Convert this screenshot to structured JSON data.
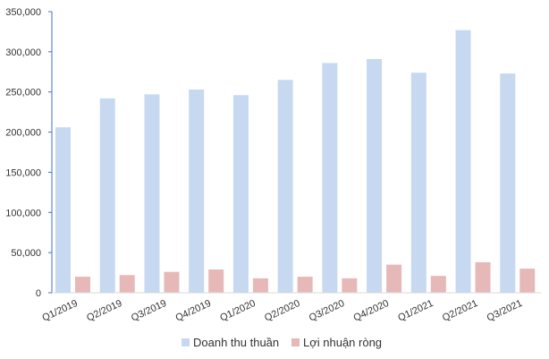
{
  "chart_data": {
    "type": "bar",
    "title": "",
    "xlabel": "",
    "ylabel": "",
    "categories": [
      "Q1/2019",
      "Q2/2019",
      "Q3/2019",
      "Q4/2019",
      "Q1/2020",
      "Q2/2020",
      "Q3/2020",
      "Q4/2020",
      "Q1/2021",
      "Q2/2021",
      "Q3/2021"
    ],
    "series": [
      {
        "name": "Doanh thu thuần",
        "color": "#c6d9f1",
        "values": [
          206000,
          242000,
          247000,
          253000,
          246000,
          265000,
          286000,
          291000,
          274000,
          327000,
          273000
        ]
      },
      {
        "name": "Lợi nhuận ròng",
        "color": "#e6b9b8",
        "values": [
          20000,
          22000,
          26000,
          29000,
          18000,
          20000,
          18000,
          35000,
          21000,
          38000,
          30000
        ]
      }
    ],
    "ylim": [
      0,
      350000
    ],
    "yticks": [
      "0",
      "50,000",
      "100,000",
      "150,000",
      "200,000",
      "250,000",
      "300,000",
      "350,000"
    ],
    "grid": false,
    "legend_position": "bottom"
  }
}
